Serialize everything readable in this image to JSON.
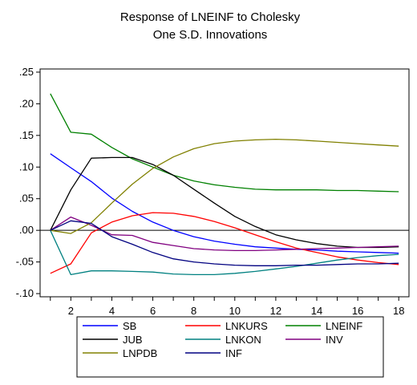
{
  "chart_data": {
    "type": "line",
    "title": "Response of LNEINF to Cholesky",
    "subtitle": "One S.D. Innovations",
    "x": [
      1,
      2,
      3,
      4,
      5,
      6,
      7,
      8,
      9,
      10,
      11,
      12,
      13,
      14,
      15,
      16,
      17,
      18
    ],
    "x_ticks": [
      2,
      4,
      6,
      8,
      10,
      12,
      14,
      16,
      18
    ],
    "y_ticks": [
      -0.1,
      -0.05,
      0.0,
      0.05,
      0.1,
      0.15,
      0.2,
      0.25
    ],
    "y_tick_labels": [
      "-.10",
      "-.05",
      ".00",
      ".05",
      ".10",
      ".15",
      ".20",
      ".25"
    ],
    "xlim": [
      0.5,
      18.5
    ],
    "ylim": [
      -0.105,
      0.255
    ],
    "grid": false,
    "zero_line": true,
    "legend_position": "bottom",
    "series": [
      {
        "name": "SB",
        "color": "#0000ff",
        "values": [
          0.121,
          0.099,
          0.077,
          0.051,
          0.03,
          0.013,
          0.0,
          -0.01,
          -0.017,
          -0.022,
          -0.026,
          -0.028,
          -0.03,
          -0.031,
          -0.033,
          -0.034,
          -0.035,
          -0.036
        ]
      },
      {
        "name": "LNKURS",
        "color": "#ff0000",
        "values": [
          -0.068,
          -0.053,
          -0.004,
          0.013,
          0.023,
          0.028,
          0.027,
          0.022,
          0.014,
          0.004,
          -0.007,
          -0.018,
          -0.028,
          -0.035,
          -0.042,
          -0.047,
          -0.051,
          -0.054
        ]
      },
      {
        "name": "LNEINF",
        "color": "#008000",
        "values": [
          0.216,
          0.155,
          0.152,
          0.131,
          0.113,
          0.1,
          0.087,
          0.078,
          0.072,
          0.068,
          0.065,
          0.064,
          0.064,
          0.064,
          0.063,
          0.063,
          0.062,
          0.061
        ]
      },
      {
        "name": "JUB",
        "color": "#000000",
        "values": [
          0.0,
          0.064,
          0.114,
          0.115,
          0.115,
          0.104,
          0.087,
          0.065,
          0.043,
          0.022,
          0.006,
          -0.007,
          -0.015,
          -0.021,
          -0.025,
          -0.027,
          -0.027,
          -0.026
        ]
      },
      {
        "name": "LNKON",
        "color": "#008080",
        "values": [
          0.0,
          -0.07,
          -0.064,
          -0.064,
          -0.065,
          -0.066,
          -0.069,
          -0.07,
          -0.07,
          -0.068,
          -0.065,
          -0.061,
          -0.057,
          -0.052,
          -0.047,
          -0.043,
          -0.04,
          -0.038
        ]
      },
      {
        "name": "INV",
        "color": "#800080",
        "values": [
          0.0,
          0.021,
          0.008,
          -0.007,
          -0.008,
          -0.019,
          -0.024,
          -0.029,
          -0.031,
          -0.032,
          -0.032,
          -0.031,
          -0.03,
          -0.029,
          -0.028,
          -0.027,
          -0.026,
          -0.025
        ]
      },
      {
        "name": "LNPDB",
        "color": "#808000",
        "values": [
          0.0,
          -0.005,
          0.012,
          0.043,
          0.073,
          0.098,
          0.116,
          0.129,
          0.137,
          0.141,
          0.143,
          0.144,
          0.143,
          0.141,
          0.139,
          0.137,
          0.135,
          0.133
        ]
      },
      {
        "name": "INF",
        "color": "#000080",
        "values": [
          0.0,
          0.015,
          0.011,
          -0.01,
          -0.022,
          -0.035,
          -0.045,
          -0.05,
          -0.053,
          -0.055,
          -0.056,
          -0.056,
          -0.055,
          -0.055,
          -0.054,
          -0.053,
          -0.053,
          -0.052
        ]
      }
    ]
  }
}
